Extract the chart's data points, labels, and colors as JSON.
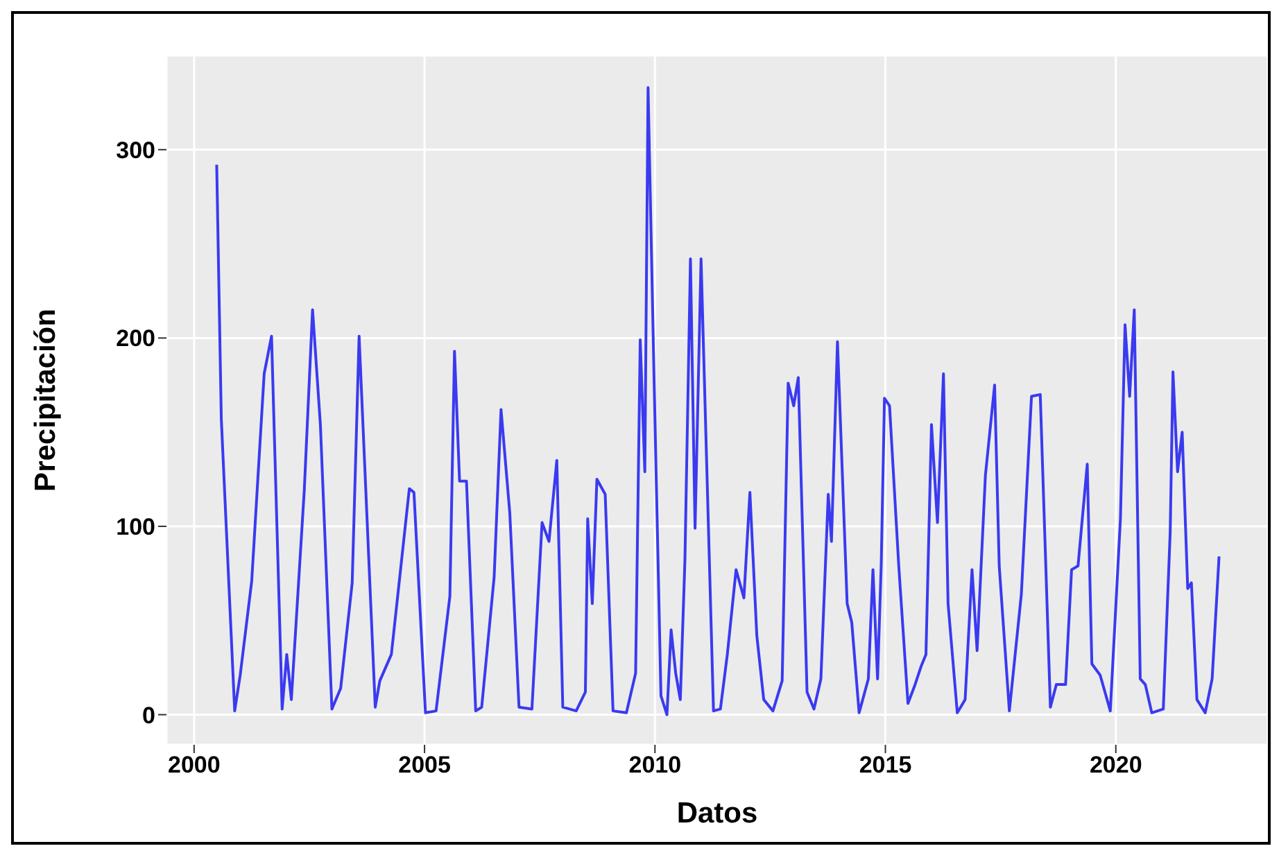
{
  "chart_data": {
    "type": "line",
    "xlabel": "Datos",
    "ylabel": "Precipitación",
    "x": [
      2000.49,
      2000.59,
      2000.88,
      2001.0,
      2001.25,
      2001.52,
      2001.68,
      2001.91,
      2002.01,
      2002.11,
      2002.39,
      2002.57,
      2002.74,
      2002.99,
      2003.18,
      2003.43,
      2003.58,
      2003.93,
      2004.03,
      2004.28,
      2004.67,
      2004.77,
      2005.02,
      2005.25,
      2005.55,
      2005.65,
      2005.76,
      2005.91,
      2006.11,
      2006.24,
      2006.51,
      2006.66,
      2006.85,
      2007.05,
      2007.33,
      2007.55,
      2007.7,
      2007.87,
      2008.0,
      2008.29,
      2008.49,
      2008.54,
      2008.64,
      2008.74,
      2008.92,
      2009.09,
      2009.38,
      2009.58,
      2009.68,
      2009.78,
      2009.85,
      2009.98,
      2010.13,
      2010.26,
      2010.35,
      2010.45,
      2010.55,
      2010.65,
      2010.77,
      2010.87,
      2011.0,
      2011.27,
      2011.42,
      2011.57,
      2011.76,
      2011.93,
      2012.06,
      2012.21,
      2012.36,
      2012.56,
      2012.76,
      2012.89,
      2013.01,
      2013.11,
      2013.3,
      2013.45,
      2013.6,
      2013.76,
      2013.83,
      2013.96,
      2014.17,
      2014.27,
      2014.43,
      2014.63,
      2014.73,
      2014.83,
      2014.91,
      2014.98,
      2015.09,
      2015.29,
      2015.49,
      2015.63,
      2015.78,
      2015.88,
      2016.0,
      2016.13,
      2016.26,
      2016.36,
      2016.56,
      2016.73,
      2016.88,
      2016.99,
      2017.17,
      2017.37,
      2017.47,
      2017.69,
      2017.95,
      2018.17,
      2018.36,
      2018.58,
      2018.71,
      2018.91,
      2019.04,
      2019.18,
      2019.38,
      2019.48,
      2019.66,
      2019.88,
      2020.1,
      2020.2,
      2020.3,
      2020.4,
      2020.53,
      2020.64,
      2020.78,
      2021.03,
      2021.18,
      2021.24,
      2021.34,
      2021.44,
      2021.56,
      2021.64,
      2021.76,
      2021.94,
      2022.09,
      2022.24
    ],
    "series": [
      {
        "color": "#3a3af0",
        "values": [
          292,
          157,
          2,
          21,
          71,
          181,
          201,
          3,
          32,
          8,
          119,
          215,
          154,
          3,
          14,
          70,
          201,
          4,
          18,
          32,
          120,
          118,
          1,
          2,
          63,
          193,
          124,
          124,
          2,
          4,
          73,
          162,
          107,
          4,
          3,
          102,
          92,
          135,
          4,
          2,
          12,
          104,
          59,
          125,
          117,
          2,
          1,
          22,
          199,
          129,
          333,
          179,
          10,
          0,
          45,
          22,
          8,
          82,
          242,
          99,
          242,
          2,
          3,
          32,
          77,
          62,
          118,
          42,
          8,
          2,
          18,
          176,
          164,
          179,
          12,
          3,
          19,
          117,
          92,
          198,
          59,
          49,
          1,
          19,
          77,
          19,
          80,
          168,
          164,
          79,
          6,
          15,
          26,
          32,
          154,
          102,
          181,
          59,
          1,
          8,
          77,
          34,
          127,
          175,
          79,
          2,
          64,
          169,
          170,
          4,
          16,
          16,
          77,
          79,
          133,
          27,
          21,
          2,
          104,
          207,
          169,
          215,
          19,
          16,
          1,
          3,
          97,
          182,
          129,
          150,
          67,
          70,
          8,
          1,
          19,
          84
        ]
      }
    ],
    "xlim": [
      1999.4,
      2023.3
    ],
    "xticks": [
      2000,
      2005,
      2010,
      2015,
      2020
    ],
    "ylim": [
      -16,
      350
    ],
    "yticks": [
      0,
      100,
      200,
      300
    ],
    "grid": true
  }
}
